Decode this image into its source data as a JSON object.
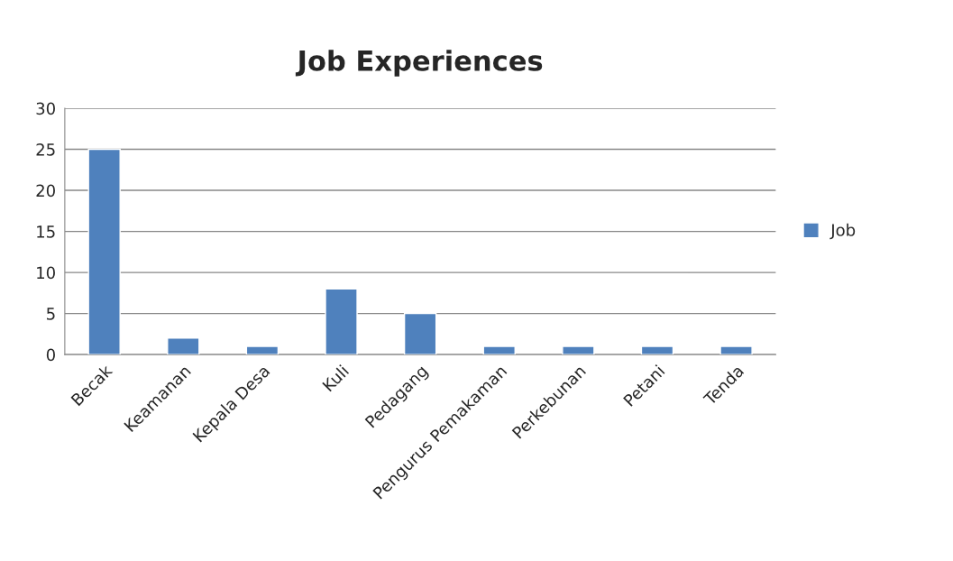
{
  "chart_data": {
    "type": "bar",
    "title": "Job Experiences",
    "categories": [
      "Becak",
      "Keamanan",
      "Kepala Desa",
      "Kuli",
      "Pedagang",
      "Pengurus Pemakaman",
      "Perkebunan",
      "Petani",
      "Tenda"
    ],
    "series": [
      {
        "name": "Job",
        "color": "#4f81bd",
        "values": [
          25,
          2,
          1,
          8,
          5,
          1,
          1,
          1,
          1
        ]
      }
    ],
    "ylim": [
      0,
      30
    ],
    "yticks": [
      0,
      5,
      10,
      15,
      20,
      25,
      30
    ],
    "grid": "y",
    "legend": "right"
  }
}
